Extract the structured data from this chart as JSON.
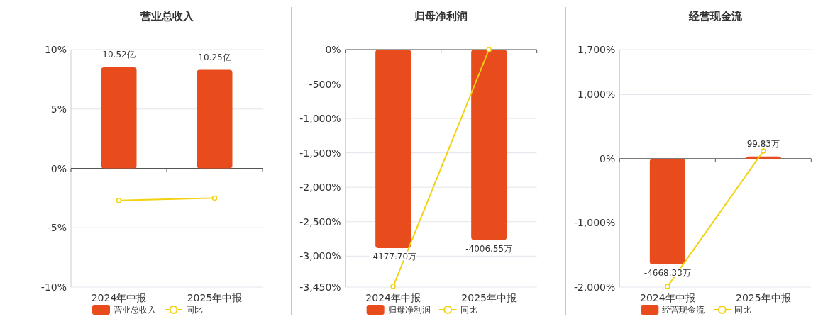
{
  "chart_data": [
    {
      "type": "bar",
      "title": "营业总收入",
      "categories": [
        "2024年中报",
        "2025年中报"
      ],
      "series": [
        {
          "name": "营业总收入",
          "type": "bar",
          "axis": "y2",
          "color": "#e84c1d",
          "values": [
            10.52,
            10.25
          ],
          "value_labels": [
            "10.52亿",
            "10.25亿"
          ]
        },
        {
          "name": "同比",
          "type": "line",
          "color": "#f2d20f",
          "values": [
            -2.7,
            -2.5
          ]
        }
      ],
      "ylim": [
        -10,
        10
      ],
      "yticks": [
        {
          "value": -10,
          "label": "-10%"
        },
        {
          "value": -5,
          "label": "-5%"
        },
        {
          "value": 0,
          "label": "0%"
        },
        {
          "value": 5,
          "label": "5%"
        },
        {
          "value": 10,
          "label": "10%"
        }
      ],
      "y2lim": [
        -12.36,
        12.36
      ],
      "grid": "y",
      "legend": "bottom",
      "marker": "circle"
    },
    {
      "type": "bar",
      "title": "归母净利润",
      "categories": [
        "2024年中报",
        "2025年中报"
      ],
      "series": [
        {
          "name": "归母净利润",
          "type": "bar",
          "axis": "y2",
          "color": "#e84c1d",
          "values": [
            -4177.7,
            -4006.55
          ],
          "value_labels": [
            "-4177.70万",
            "-4006.55万"
          ]
        },
        {
          "name": "同比",
          "type": "line",
          "color": "#f2d20f",
          "values": [
            -3440,
            0
          ]
        }
      ],
      "ylim": [
        -3450,
        0
      ],
      "yticks": [
        {
          "value": -3450,
          "label": "-3,450%"
        },
        {
          "value": -3000,
          "label": "-3,000%"
        },
        {
          "value": -2500,
          "label": "-2,500%"
        },
        {
          "value": -2000,
          "label": "-2,000%"
        },
        {
          "value": -1500,
          "label": "-1,500%"
        },
        {
          "value": -1000,
          "label": "-1,000%"
        },
        {
          "value": -500,
          "label": "-500%"
        },
        {
          "value": 0,
          "label": "0%"
        }
      ],
      "y2lim": [
        -4998,
        0
      ],
      "grid": "y",
      "legend": "bottom",
      "marker": "circle"
    },
    {
      "type": "bar",
      "title": "经营现金流",
      "categories": [
        "2024年中报",
        "2025年中报"
      ],
      "series": [
        {
          "name": "经营现金流",
          "type": "bar",
          "axis": "y2",
          "color": "#e84c1d",
          "values": [
            -4668.33,
            99.83
          ],
          "value_labels": [
            "-4668.33万",
            "99.83万"
          ]
        },
        {
          "name": "同比",
          "type": "line",
          "color": "#f2d20f",
          "values": [
            -1990,
            120
          ]
        }
      ],
      "ylim": [
        -2000,
        1700
      ],
      "yticks": [
        {
          "value": -2000,
          "label": "-2,000%"
        },
        {
          "value": -1000,
          "label": "-1,000%"
        },
        {
          "value": 0,
          "label": "0%"
        },
        {
          "value": 1000,
          "label": "1,000%"
        },
        {
          "value": 1700,
          "label": "1,700%"
        }
      ],
      "y2lim": [
        -5670,
        4826
      ],
      "grid": "y",
      "legend": "bottom",
      "marker": "circle"
    }
  ]
}
